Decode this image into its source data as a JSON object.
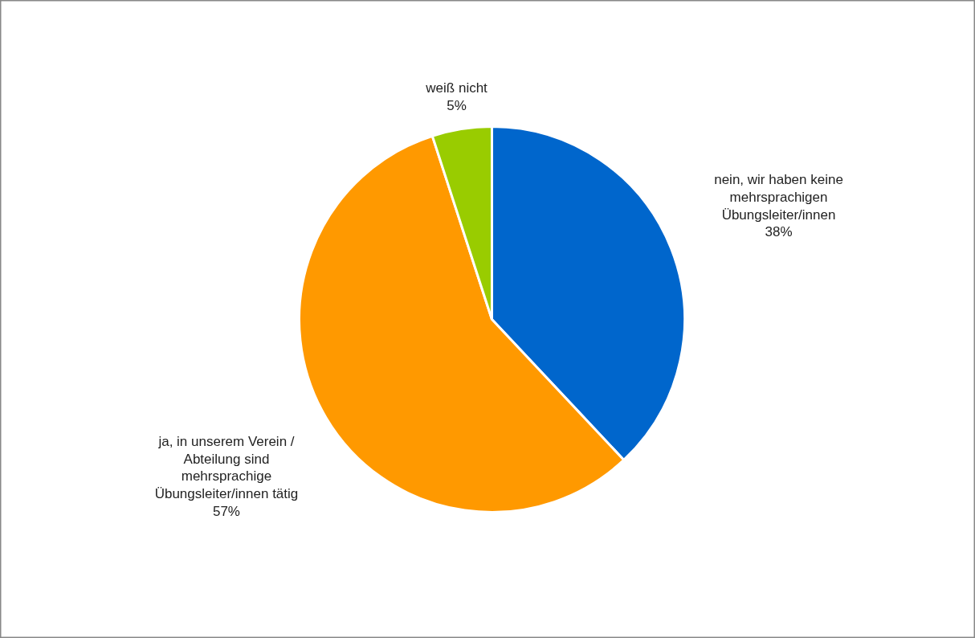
{
  "chart_data": {
    "type": "pie",
    "categories": [
      "nein, wir haben keine\nmehrsprachigen\nÜbungsleiter/innen",
      "ja, in unserem Verein /\nAbteilung sind\nmehrsprachige\nÜbungsleiter/innen tätig",
      "weiß nicht"
    ],
    "values": [
      38,
      57,
      5
    ],
    "value_labels": [
      "38%",
      "57%",
      "5%"
    ],
    "colors": [
      "#0066cc",
      "#ff9900",
      "#99cc00"
    ]
  }
}
